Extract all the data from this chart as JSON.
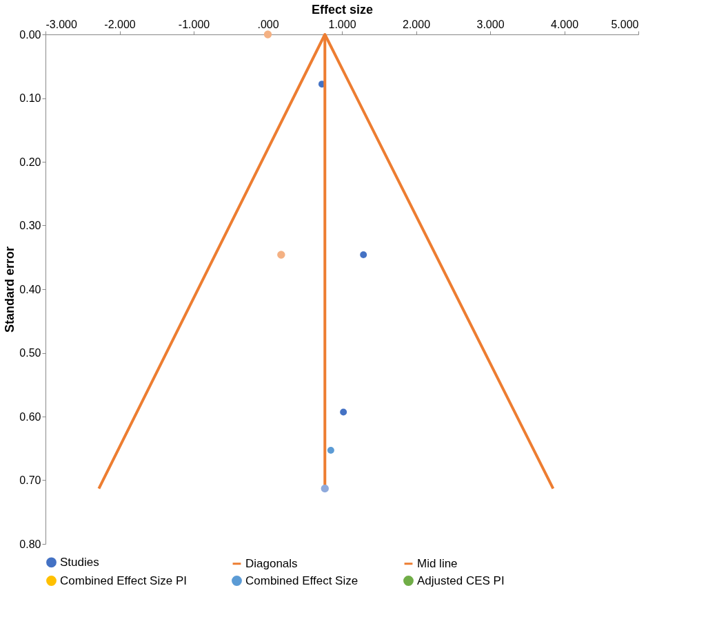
{
  "chart_data": {
    "type": "scatter",
    "xlabel": "Effect size",
    "ylabel": "Standard error",
    "xlim": [
      -3,
      5
    ],
    "ylim": [
      0.8,
      0
    ],
    "xticks": [
      {
        "value": -3,
        "label": "-3.000"
      },
      {
        "value": -2,
        "label": "-2.000"
      },
      {
        "value": -1,
        "label": "-1.000"
      },
      {
        "value": 0,
        "label": ".000"
      },
      {
        "value": 1,
        "label": "1.000"
      },
      {
        "value": 2,
        "label": "2.000"
      },
      {
        "value": 3,
        "label": "3.000"
      },
      {
        "value": 4,
        "label": "4.000"
      },
      {
        "value": 5,
        "label": "5.000"
      }
    ],
    "yticks": [
      {
        "value": 0,
        "label": "0.00"
      },
      {
        "value": 0.1,
        "label": "0.10"
      },
      {
        "value": 0.2,
        "label": "0.20"
      },
      {
        "value": 0.3,
        "label": "0.30"
      },
      {
        "value": 0.4,
        "label": "0.40"
      },
      {
        "value": 0.5,
        "label": "0.50"
      },
      {
        "value": 0.6,
        "label": "0.60"
      },
      {
        "value": 0.7,
        "label": "0.70"
      },
      {
        "value": 0.8,
        "label": "0.80"
      }
    ],
    "grid": false,
    "legend": "bottom",
    "series": [
      {
        "name": "Studies",
        "color": "#4472c4",
        "marker": "circle",
        "x": [
          0.73,
          1.29,
          1.02
        ],
        "values": [
          0.078,
          0.346,
          0.593
        ]
      },
      {
        "name": "Diagonals",
        "type": "line",
        "color": "#ed7d31",
        "marker": "none",
        "x": [
          -2.28,
          0.77,
          3.85
        ],
        "values": [
          0.713,
          0,
          0.713
        ]
      },
      {
        "name": "Mid line",
        "type": "line",
        "color": "#ed7d31",
        "marker": "none",
        "x": [
          0.77,
          0.77
        ],
        "values": [
          0,
          0.713
        ]
      },
      {
        "name": "Combined Effect Size PI",
        "color": "#ffc000",
        "marker": "circle"
      },
      {
        "name": "Combined Effect Size",
        "color": "#5b9bd5",
        "marker": "circle",
        "x": [
          0.85
        ],
        "values": [
          0.653
        ]
      },
      {
        "name": "Adjusted CES PI",
        "color": "#70ad47",
        "marker": "circle"
      },
      {
        "color": "#f4b183",
        "marker": "circle",
        "x": [
          0,
          0.18
        ],
        "values": [
          0,
          0.346
        ]
      },
      {
        "color": "#8faadc",
        "marker": "circle",
        "x": [
          0.77
        ],
        "values": [
          0.713
        ]
      }
    ]
  }
}
